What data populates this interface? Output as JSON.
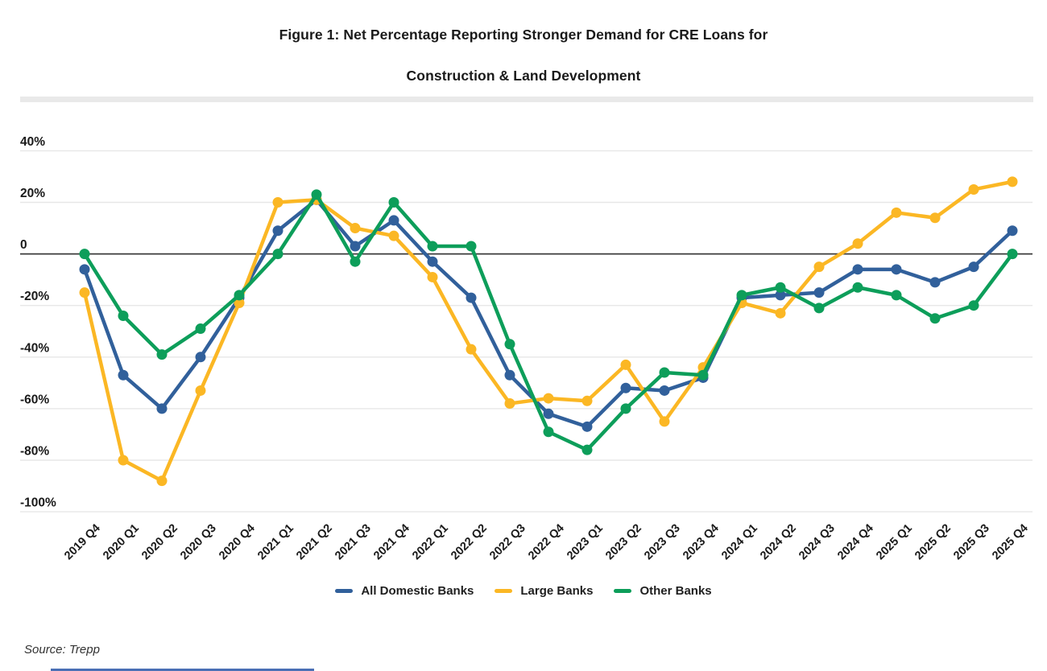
{
  "page": {
    "title_line1": "Figure 1: Net Percentage Reporting Stronger Demand for CRE Loans for",
    "title_line2": "Construction & Land Development",
    "source": "Source: Trepp"
  },
  "colors": {
    "grid": "#e7e7e7",
    "zero_line": "#3c3c3c",
    "axis_text": "#1a1a1a",
    "divider": "#e9e9e9",
    "bottom_bar": "#4a6fb5"
  },
  "chart_data": {
    "type": "line",
    "title": "Figure 1: Net Percentage Reporting Stronger Demand for CRE Loans for Construction & Land Development",
    "xlabel": "",
    "ylabel": "",
    "ylim": [
      -100,
      40
    ],
    "grid": true,
    "legend_position": "bottom",
    "ytick_values": [
      40,
      20,
      0,
      -20,
      -40,
      -60,
      -80,
      -100
    ],
    "ytick_labels": [
      "40%",
      "20%",
      "0",
      "-20%",
      "-40%",
      "-60%",
      "-80%",
      "-100%"
    ],
    "categories": [
      "2019 Q4",
      "2020 Q1",
      "2020 Q2",
      "2020 Q3",
      "2020 Q4",
      "2021 Q1",
      "2021 Q2",
      "2021 Q3",
      "2021 Q4",
      "2022 Q1",
      "2022 Q2",
      "2022 Q3",
      "2022 Q4",
      "2023 Q1",
      "2023 Q2",
      "2023 Q3",
      "2023 Q4",
      "2024 Q1",
      "2024 Q2",
      "2024 Q3",
      "2024 Q4",
      "2025 Q1",
      "2025 Q2",
      "2025 Q3",
      "2025 Q4"
    ],
    "series": [
      {
        "name": "All Domestic Banks",
        "color": "#31609b",
        "values": [
          -6,
          -47,
          -60,
          -40,
          -17,
          9,
          21,
          3,
          13,
          -3,
          -17,
          -47,
          -62,
          -67,
          -52,
          -53,
          -48,
          -17,
          -16,
          -15,
          -6,
          -6,
          -11,
          -5,
          9
        ]
      },
      {
        "name": "Large Banks",
        "color": "#fbb724",
        "values": [
          -15,
          -80,
          -88,
          -53,
          -19,
          20,
          21,
          10,
          7,
          -9,
          -37,
          -58,
          -56,
          -57,
          -43,
          -65,
          -44,
          -19,
          -23,
          -5,
          4,
          16,
          14,
          25,
          28
        ]
      },
      {
        "name": "Other Banks",
        "color": "#0d9e5a",
        "values": [
          0,
          -24,
          -39,
          -29,
          -16,
          0,
          23,
          -3,
          20,
          3,
          3,
          -35,
          -69,
          -76,
          -60,
          -46,
          -47,
          -16,
          -13,
          -21,
          -13,
          -16,
          -25,
          -20,
          0
        ]
      }
    ]
  }
}
